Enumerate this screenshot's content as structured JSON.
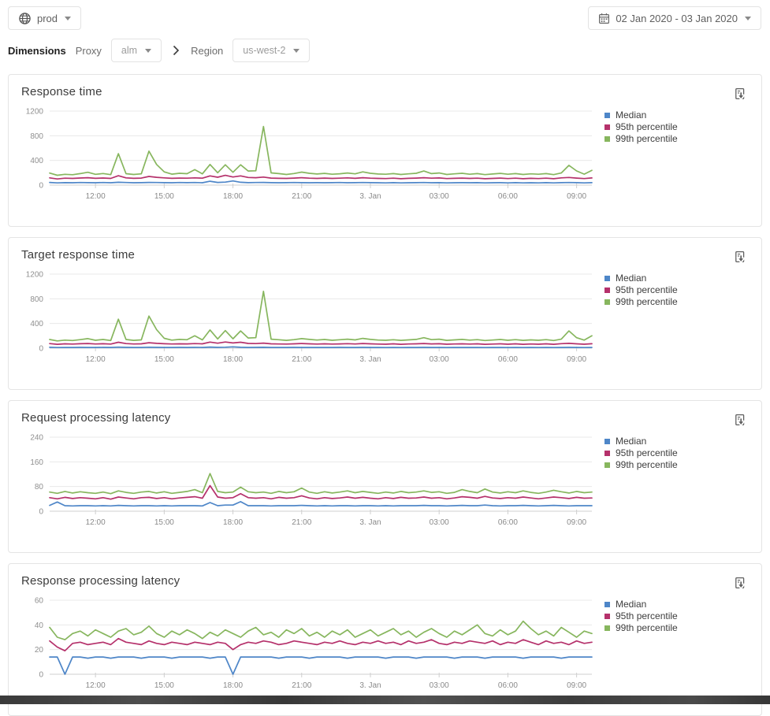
{
  "topbar": {
    "env_label": "prod",
    "date_range": "02 Jan 2020 - 03 Jan 2020"
  },
  "filters": {
    "dimensions_label": "Dimensions",
    "proxy_label": "Proxy",
    "proxy_value": "alm",
    "region_label": "Region",
    "region_value": "us-west-2"
  },
  "icons": {
    "env": "globe-icon",
    "date": "calendar-icon",
    "breadcrumb": "chevron-right-icon",
    "dropdown": "caret-down-icon",
    "export": "download-report-icon"
  },
  "colors": {
    "median": "#4e86c8",
    "p95": "#b5316b",
    "p99": "#87b65e",
    "grid": "#e8e8e8",
    "axis": "#cfcfcf",
    "tick_text": "#8f8f8f"
  },
  "chart_data": [
    {
      "type": "line",
      "title": "Response time",
      "ylim": [
        0,
        1200
      ],
      "yticks": [
        0,
        400,
        800,
        1200
      ],
      "grid": "horizontal",
      "legend_position": "right",
      "xticks": [
        {
          "label": "12:00",
          "i": 6
        },
        {
          "label": "15:00",
          "i": 15
        },
        {
          "label": "18:00",
          "i": 24
        },
        {
          "label": "21:00",
          "i": 33
        },
        {
          "label": "3. Jan",
          "i": 42
        },
        {
          "label": "03:00",
          "i": 51
        },
        {
          "label": "06:00",
          "i": 60
        },
        {
          "label": "09:00",
          "i": 69
        }
      ],
      "series": [
        {
          "name": "Median",
          "color": "#4e86c8",
          "values": [
            44,
            36,
            40,
            38,
            42,
            40,
            38,
            42,
            38,
            46,
            42,
            38,
            40,
            44,
            42,
            40,
            38,
            42,
            40,
            42,
            38,
            62,
            44,
            48,
            68,
            46,
            40,
            42,
            44,
            40,
            38,
            40,
            42,
            40,
            38,
            40,
            38,
            40,
            42,
            38,
            40,
            42,
            40,
            38,
            36,
            40,
            36,
            38,
            40,
            42,
            38,
            40,
            36,
            38,
            40,
            38,
            40,
            36,
            38,
            40,
            36,
            40,
            36,
            38,
            36,
            40,
            36,
            40,
            42,
            40,
            36,
            40
          ]
        },
        {
          "name": "95th percentile",
          "color": "#b5316b",
          "values": [
            118,
            100,
            112,
            108,
            115,
            120,
            110,
            115,
            108,
            152,
            118,
            110,
            114,
            140,
            126,
            118,
            110,
            114,
            112,
            118,
            112,
            150,
            128,
            158,
            132,
            150,
            124,
            120,
            130,
            114,
            110,
            108,
            114,
            120,
            112,
            108,
            114,
            108,
            112,
            118,
            110,
            120,
            112,
            108,
            106,
            112,
            104,
            110,
            114,
            120,
            112,
            116,
            106,
            110,
            114,
            108,
            112,
            104,
            108,
            114,
            106,
            112,
            104,
            110,
            106,
            112,
            104,
            118,
            124,
            114,
            106,
            116
          ]
        },
        {
          "name": "99th percentile",
          "color": "#87b65e",
          "values": [
            195,
            160,
            175,
            168,
            186,
            208,
            175,
            188,
            170,
            510,
            185,
            172,
            182,
            550,
            335,
            215,
            178,
            192,
            185,
            250,
            182,
            335,
            200,
            330,
            208,
            330,
            228,
            232,
            950,
            198,
            186,
            172,
            188,
            210,
            192,
            180,
            190,
            176,
            184,
            196,
            182,
            214,
            192,
            180,
            176,
            186,
            172,
            182,
            192,
            228,
            186,
            196,
            172,
            182,
            192,
            176,
            186,
            170,
            180,
            190,
            176,
            186,
            172,
            182,
            176,
            186,
            170,
            196,
            320,
            230,
            178,
            240
          ]
        }
      ]
    },
    {
      "type": "line",
      "title": "Target response time",
      "ylim": [
        0,
        1200
      ],
      "yticks": [
        0,
        400,
        800,
        1200
      ],
      "grid": "horizontal",
      "legend_position": "right",
      "xticks": [
        {
          "label": "12:00",
          "i": 6
        },
        {
          "label": "15:00",
          "i": 15
        },
        {
          "label": "18:00",
          "i": 24
        },
        {
          "label": "21:00",
          "i": 33
        },
        {
          "label": "3. Jan",
          "i": 42
        },
        {
          "label": "03:00",
          "i": 51
        },
        {
          "label": "06:00",
          "i": 60
        },
        {
          "label": "09:00",
          "i": 69
        }
      ],
      "series": [
        {
          "name": "Median",
          "color": "#4e86c8",
          "values": [
            14,
            10,
            12,
            11,
            13,
            12,
            11,
            13,
            11,
            16,
            13,
            11,
            12,
            15,
            13,
            12,
            11,
            13,
            12,
            13,
            11,
            18,
            13,
            15,
            22,
            14,
            12,
            13,
            14,
            12,
            11,
            12,
            13,
            12,
            11,
            12,
            11,
            12,
            13,
            11,
            12,
            13,
            12,
            11,
            10,
            12,
            10,
            11,
            12,
            13,
            11,
            12,
            10,
            11,
            12,
            11,
            12,
            10,
            11,
            12,
            10,
            12,
            10,
            11,
            10,
            12,
            10,
            12,
            13,
            12,
            10,
            12
          ]
        },
        {
          "name": "95th percentile",
          "color": "#b5316b",
          "values": [
            74,
            62,
            70,
            66,
            72,
            75,
            68,
            72,
            66,
            96,
            74,
            68,
            70,
            88,
            78,
            72,
            68,
            70,
            69,
            74,
            70,
            98,
            80,
            100,
            84,
            96,
            76,
            74,
            82,
            70,
            68,
            66,
            70,
            75,
            70,
            66,
            70,
            66,
            69,
            73,
            68,
            75,
            70,
            66,
            64,
            70,
            63,
            68,
            70,
            75,
            69,
            72,
            64,
            68,
            70,
            66,
            70,
            63,
            66,
            70,
            64,
            70,
            63,
            68,
            64,
            70,
            63,
            73,
            78,
            70,
            64,
            72
          ]
        },
        {
          "name": "99th percentile",
          "color": "#87b65e",
          "values": [
            140,
            118,
            130,
            124,
            138,
            155,
            128,
            140,
            124,
            470,
            140,
            126,
            134,
            520,
            300,
            160,
            130,
            142,
            136,
            200,
            134,
            295,
            150,
            285,
            152,
            280,
            165,
            170,
            920,
            145,
            136,
            126,
            138,
            155,
            142,
            132,
            140,
            128,
            136,
            146,
            134,
            158,
            142,
            132,
            128,
            136,
            126,
            134,
            142,
            170,
            138,
            146,
            126,
            134,
            142,
            130,
            138,
            124,
            132,
            140,
            128,
            138,
            126,
            134,
            128,
            138,
            124,
            146,
            280,
            170,
            130,
            200
          ]
        }
      ]
    },
    {
      "type": "line",
      "title": "Request processing latency",
      "ylim": [
        0,
        240
      ],
      "yticks": [
        0,
        80,
        160,
        240
      ],
      "grid": "horizontal",
      "legend_position": "right",
      "xticks": [
        {
          "label": "12:00",
          "i": 6
        },
        {
          "label": "15:00",
          "i": 15
        },
        {
          "label": "18:00",
          "i": 24
        },
        {
          "label": "21:00",
          "i": 33
        },
        {
          "label": "3. Jan",
          "i": 42
        },
        {
          "label": "03:00",
          "i": 51
        },
        {
          "label": "06:00",
          "i": 60
        },
        {
          "label": "09:00",
          "i": 69
        }
      ],
      "series": [
        {
          "name": "Median",
          "color": "#4e86c8",
          "values": [
            19,
            30,
            18,
            17,
            18,
            18,
            17,
            18,
            17,
            19,
            18,
            17,
            18,
            18,
            17,
            18,
            17,
            18,
            18,
            18,
            17,
            28,
            18,
            20,
            20,
            31,
            18,
            18,
            18,
            17,
            18,
            18,
            18,
            19,
            18,
            17,
            18,
            17,
            18,
            18,
            17,
            18,
            18,
            17,
            18,
            17,
            18,
            18,
            18,
            19,
            18,
            18,
            17,
            18,
            19,
            18,
            18,
            20,
            18,
            17,
            18,
            18,
            19,
            18,
            17,
            18,
            19,
            18,
            17,
            18,
            18,
            18
          ]
        },
        {
          "name": "95th percentile",
          "color": "#b5316b",
          "values": [
            44,
            40,
            45,
            41,
            44,
            42,
            40,
            44,
            39,
            46,
            43,
            40,
            44,
            45,
            41,
            44,
            40,
            43,
            45,
            47,
            42,
            83,
            46,
            42,
            44,
            57,
            44,
            42,
            44,
            40,
            45,
            42,
            44,
            50,
            43,
            40,
            44,
            41,
            43,
            46,
            42,
            45,
            42,
            40,
            44,
            41,
            45,
            42,
            43,
            46,
            42,
            44,
            40,
            43,
            47,
            45,
            42,
            48,
            43,
            41,
            44,
            42,
            46,
            43,
            40,
            43,
            46,
            44,
            41,
            45,
            42,
            43
          ]
        },
        {
          "name": "99th percentile",
          "color": "#87b65e",
          "values": [
            62,
            58,
            64,
            59,
            63,
            60,
            58,
            62,
            57,
            66,
            61,
            58,
            62,
            64,
            59,
            63,
            58,
            61,
            64,
            70,
            60,
            122,
            64,
            60,
            62,
            78,
            63,
            60,
            62,
            58,
            64,
            60,
            63,
            75,
            62,
            58,
            63,
            59,
            62,
            66,
            60,
            64,
            61,
            58,
            62,
            59,
            64,
            60,
            62,
            66,
            61,
            63,
            58,
            61,
            70,
            64,
            60,
            72,
            62,
            59,
            63,
            60,
            66,
            61,
            58,
            62,
            68,
            63,
            59,
            64,
            60,
            62
          ]
        }
      ]
    },
    {
      "type": "line",
      "title": "Response processing latency",
      "ylim": [
        0,
        60
      ],
      "yticks": [
        0,
        20,
        40,
        60
      ],
      "grid": "horizontal",
      "legend_position": "right",
      "xticks": [
        {
          "label": "12:00",
          "i": 6
        },
        {
          "label": "15:00",
          "i": 15
        },
        {
          "label": "18:00",
          "i": 24
        },
        {
          "label": "21:00",
          "i": 33
        },
        {
          "label": "3. Jan",
          "i": 42
        },
        {
          "label": "03:00",
          "i": 51
        },
        {
          "label": "06:00",
          "i": 60
        },
        {
          "label": "09:00",
          "i": 69
        }
      ],
      "series": [
        {
          "name": "Median",
          "color": "#4e86c8",
          "values": [
            14,
            14,
            0,
            14,
            14,
            13,
            14,
            14,
            13,
            14,
            14,
            14,
            13,
            14,
            14,
            14,
            13,
            14,
            14,
            14,
            14,
            13,
            14,
            14,
            0,
            14,
            14,
            14,
            14,
            14,
            13,
            14,
            14,
            14,
            13,
            14,
            14,
            14,
            14,
            13,
            14,
            14,
            14,
            14,
            13,
            14,
            14,
            14,
            13,
            14,
            14,
            14,
            14,
            13,
            14,
            14,
            14,
            13,
            14,
            14,
            14,
            14,
            13,
            14,
            14,
            14,
            14,
            13,
            14,
            14,
            14,
            14
          ]
        },
        {
          "name": "95th percentile",
          "color": "#b5316b",
          "values": [
            27,
            22,
            19,
            25,
            26,
            24,
            25,
            26,
            24,
            29,
            26,
            25,
            24,
            27,
            25,
            24,
            26,
            25,
            24,
            26,
            25,
            24,
            26,
            25,
            20,
            24,
            26,
            25,
            27,
            26,
            24,
            25,
            27,
            26,
            25,
            24,
            26,
            25,
            27,
            25,
            24,
            26,
            25,
            27,
            25,
            26,
            24,
            27,
            25,
            26,
            28,
            25,
            24,
            26,
            25,
            27,
            26,
            25,
            27,
            24,
            26,
            25,
            28,
            26,
            24,
            27,
            25,
            26,
            24,
            27,
            25,
            26
          ]
        },
        {
          "name": "99th percentile",
          "color": "#87b65e",
          "values": [
            38,
            30,
            28,
            33,
            35,
            31,
            36,
            33,
            30,
            35,
            37,
            32,
            34,
            39,
            33,
            30,
            35,
            32,
            36,
            33,
            29,
            34,
            31,
            36,
            33,
            30,
            35,
            38,
            32,
            34,
            30,
            36,
            33,
            37,
            31,
            34,
            30,
            35,
            32,
            36,
            30,
            33,
            36,
            31,
            34,
            37,
            32,
            35,
            30,
            34,
            37,
            33,
            30,
            35,
            32,
            36,
            40,
            33,
            31,
            36,
            32,
            35,
            43,
            37,
            32,
            35,
            31,
            38,
            34,
            30,
            35,
            33
          ]
        }
      ]
    }
  ]
}
